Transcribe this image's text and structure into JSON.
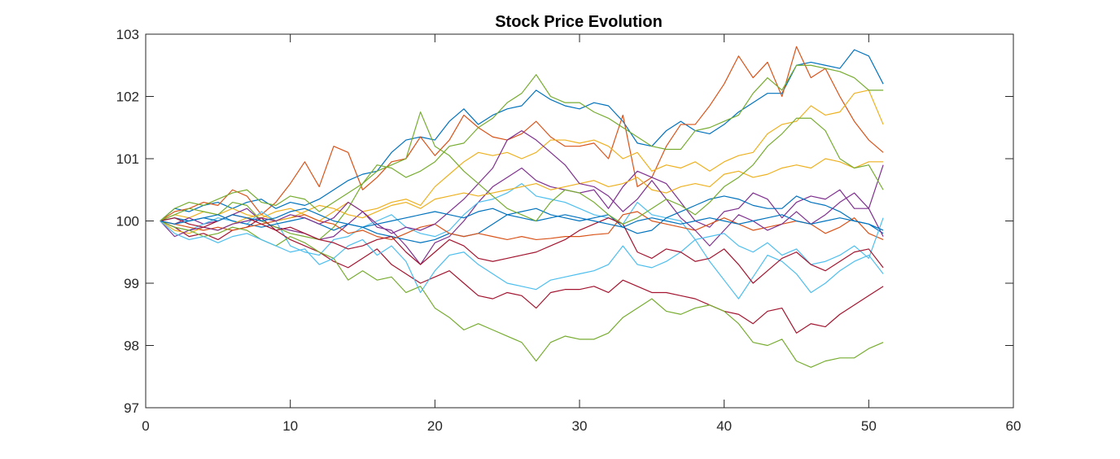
{
  "chart_data": {
    "type": "line",
    "title": "Stock Price Evolution",
    "xlabel": "",
    "ylabel": "",
    "xlim": [
      0,
      60
    ],
    "ylim": [
      97,
      103
    ],
    "xticks": [
      0,
      10,
      20,
      30,
      40,
      50,
      60
    ],
    "yticks": [
      97,
      98,
      99,
      100,
      101,
      102,
      103
    ],
    "xtick_labels": [
      "0",
      "10",
      "20",
      "30",
      "40",
      "50",
      "60"
    ],
    "ytick_labels": [
      "97",
      "98",
      "99",
      "100",
      "101",
      "102",
      "103"
    ],
    "grid": false,
    "box": true,
    "x": [
      1,
      2,
      3,
      4,
      5,
      6,
      7,
      8,
      9,
      10,
      11,
      12,
      13,
      14,
      15,
      16,
      17,
      18,
      19,
      20,
      21,
      22,
      23,
      24,
      25,
      26,
      27,
      28,
      29,
      30,
      31,
      32,
      33,
      34,
      35,
      36,
      37,
      38,
      39,
      40,
      41,
      42,
      43,
      44,
      45,
      46,
      47,
      48,
      49,
      50,
      51
    ],
    "series": [
      {
        "color": "#0072BD",
        "values": [
          100,
          100.2,
          100.15,
          100.25,
          100.3,
          100.2,
          100.3,
          100.35,
          100.2,
          100.3,
          100.25,
          100.35,
          100.5,
          100.65,
          100.75,
          100.8,
          101.1,
          101.3,
          101.35,
          101.3,
          101.6,
          101.8,
          101.55,
          101.7,
          101.8,
          101.85,
          102.1,
          101.95,
          101.85,
          101.8,
          101.9,
          101.85,
          101.6,
          101.25,
          101.2,
          101.45,
          101.6,
          101.45,
          101.4,
          101.55,
          101.75,
          101.9,
          102.05,
          102.05,
          102.5,
          102.55,
          102.5,
          102.45,
          102.75,
          102.65,
          102.2
        ]
      },
      {
        "color": "#D95319",
        "values": [
          100,
          100.15,
          100.2,
          100.3,
          100.25,
          100.5,
          100.4,
          100.1,
          100.3,
          100.6,
          100.95,
          100.55,
          101.2,
          101.1,
          100.5,
          100.7,
          100.95,
          101.0,
          101.35,
          101.05,
          101.3,
          101.7,
          101.5,
          101.35,
          101.3,
          101.4,
          101.6,
          101.35,
          101.2,
          101.2,
          101.25,
          101.0,
          101.7,
          100.55,
          100.7,
          101.2,
          101.55,
          101.55,
          101.85,
          102.2,
          102.65,
          102.3,
          102.55,
          102.0,
          102.8,
          102.3,
          102.45,
          102.0,
          101.6,
          101.3,
          101.1
        ]
      },
      {
        "color": "#EDB120",
        "values": [
          100,
          100.1,
          100.05,
          100.15,
          100.1,
          100.2,
          100.1,
          100.05,
          100.15,
          100.2,
          100.1,
          100.0,
          100.15,
          100.3,
          100.15,
          100.2,
          100.3,
          100.35,
          100.25,
          100.55,
          100.75,
          100.95,
          101.1,
          101.05,
          101.1,
          101.0,
          101.1,
          101.3,
          101.3,
          101.25,
          101.3,
          101.2,
          101.0,
          101.1,
          100.8,
          100.9,
          100.85,
          100.95,
          100.8,
          100.95,
          101.05,
          101.1,
          101.4,
          101.55,
          101.6,
          101.85,
          101.7,
          101.75,
          102.05,
          102.1,
          101.55
        ]
      },
      {
        "color": "#7E2F8E",
        "values": [
          100,
          99.95,
          100.05,
          99.95,
          100.0,
          100.1,
          100.2,
          100.0,
          99.9,
          99.85,
          99.8,
          99.7,
          99.75,
          99.95,
          100.15,
          99.9,
          99.85,
          99.6,
          99.3,
          99.65,
          99.75,
          100.0,
          100.3,
          100.55,
          100.7,
          100.85,
          100.65,
          100.55,
          100.5,
          100.45,
          100.5,
          100.2,
          100.55,
          100.8,
          100.7,
          100.6,
          100.3,
          100.0,
          99.9,
          100.15,
          100.2,
          100.45,
          100.35,
          100.05,
          100.3,
          100.4,
          100.35,
          100.5,
          100.2,
          100.2,
          100.9
        ]
      },
      {
        "color": "#77AC30",
        "values": [
          100,
          100.1,
          100.2,
          100.15,
          100.1,
          100.3,
          100.25,
          100.0,
          99.9,
          99.8,
          99.75,
          99.7,
          99.9,
          100.2,
          100.6,
          100.9,
          100.85,
          100.7,
          100.8,
          100.95,
          101.2,
          101.25,
          101.5,
          101.65,
          101.9,
          102.05,
          102.35,
          102.0,
          101.9,
          101.9,
          101.75,
          101.65,
          101.5,
          101.35,
          101.2,
          101.15,
          101.15,
          101.45,
          101.5,
          101.6,
          101.7,
          102.05,
          102.3,
          102.1,
          102.5,
          102.5,
          102.45,
          102.4,
          102.3,
          102.1,
          102.1
        ]
      },
      {
        "color": "#4DBEEE",
        "values": [
          100,
          99.9,
          99.85,
          99.95,
          100.05,
          100.0,
          99.95,
          100.15,
          100.0,
          99.6,
          99.5,
          99.45,
          99.7,
          99.75,
          99.9,
          100.0,
          100.1,
          99.9,
          99.8,
          99.75,
          99.85,
          100.1,
          100.3,
          100.35,
          100.45,
          100.6,
          100.4,
          100.35,
          100.3,
          100.2,
          100.1,
          100.05,
          99.95,
          100.3,
          100.1,
          100.05,
          100.0,
          99.7,
          99.35,
          99.05,
          98.75,
          99.1,
          99.45,
          99.35,
          99.15,
          98.85,
          99.0,
          99.2,
          99.35,
          99.45,
          99.15
        ]
      },
      {
        "color": "#A2142F",
        "values": [
          100,
          99.9,
          99.75,
          99.8,
          99.7,
          99.85,
          99.9,
          100.05,
          99.85,
          99.7,
          99.6,
          99.5,
          99.35,
          99.25,
          99.4,
          99.55,
          99.3,
          99.15,
          99.0,
          99.1,
          99.2,
          99.0,
          98.8,
          98.75,
          98.85,
          98.8,
          98.6,
          98.85,
          98.9,
          98.9,
          98.95,
          98.85,
          99.05,
          98.95,
          98.85,
          98.85,
          98.8,
          98.75,
          98.65,
          98.55,
          98.5,
          98.35,
          98.55,
          98.6,
          98.2,
          98.35,
          98.3,
          98.5,
          98.65,
          98.8,
          98.95
        ]
      },
      {
        "color": "#0072BD",
        "values": [
          100,
          100.05,
          100.0,
          100.05,
          100.1,
          100.0,
          99.95,
          99.9,
          99.95,
          100.0,
          100.05,
          99.95,
          99.85,
          99.95,
          99.9,
          99.8,
          99.75,
          99.7,
          99.65,
          99.7,
          99.8,
          99.75,
          99.8,
          99.95,
          100.1,
          100.15,
          100.2,
          100.1,
          100.05,
          100.0,
          100.05,
          100.1,
          99.9,
          99.8,
          99.85,
          100.05,
          100.15,
          100.25,
          100.35,
          100.4,
          100.35,
          100.25,
          100.2,
          100.2,
          100.4,
          100.3,
          100.25,
          100.15,
          100.0,
          99.95,
          99.8
        ]
      },
      {
        "color": "#D95319",
        "values": [
          100,
          99.95,
          99.9,
          99.85,
          99.9,
          99.85,
          99.9,
          99.95,
          100.0,
          100.05,
          100.1,
          100.0,
          99.95,
          99.8,
          99.85,
          99.75,
          99.7,
          99.8,
          99.9,
          99.95,
          99.8,
          99.75,
          99.8,
          99.75,
          99.7,
          99.75,
          99.7,
          99.72,
          99.75,
          99.75,
          99.78,
          99.8,
          100.1,
          100.15,
          100.0,
          99.95,
          99.9,
          99.85,
          99.95,
          100.05,
          99.95,
          99.85,
          99.9,
          99.95,
          100.0,
          99.95,
          99.8,
          99.9,
          100.05,
          99.8,
          99.7
        ]
      },
      {
        "color": "#EDB120",
        "values": [
          100,
          99.85,
          99.8,
          99.9,
          99.85,
          99.95,
          100.05,
          100.1,
          100.0,
          100.05,
          100.15,
          100.25,
          100.2,
          100.1,
          100.05,
          100.15,
          100.25,
          100.3,
          100.2,
          100.35,
          100.4,
          100.45,
          100.4,
          100.45,
          100.5,
          100.55,
          100.6,
          100.5,
          100.55,
          100.6,
          100.65,
          100.55,
          100.6,
          100.7,
          100.5,
          100.45,
          100.55,
          100.6,
          100.55,
          100.75,
          100.8,
          100.7,
          100.75,
          100.85,
          100.9,
          100.85,
          101.0,
          100.95,
          100.85,
          100.95,
          100.95
        ]
      },
      {
        "color": "#7E2F8E",
        "values": [
          100,
          99.75,
          99.85,
          99.9,
          99.85,
          99.95,
          100.0,
          100.05,
          100.0,
          100.1,
          100.05,
          99.95,
          100.05,
          100.3,
          100.15,
          99.95,
          99.8,
          99.9,
          99.85,
          99.95,
          100.15,
          100.35,
          100.6,
          100.85,
          101.3,
          101.45,
          101.3,
          101.1,
          100.9,
          100.6,
          100.55,
          100.4,
          100.15,
          100.35,
          100.65,
          100.35,
          100.05,
          99.85,
          99.6,
          99.85,
          100.1,
          100.0,
          99.85,
          99.95,
          100.15,
          99.95,
          100.1,
          100.3,
          100.45,
          100.2,
          99.75
        ]
      },
      {
        "color": "#77AC30",
        "values": [
          100,
          99.9,
          99.85,
          99.75,
          99.8,
          99.9,
          99.85,
          99.7,
          99.6,
          99.75,
          99.65,
          99.5,
          99.4,
          99.05,
          99.2,
          99.05,
          99.1,
          98.85,
          98.95,
          98.6,
          98.45,
          98.25,
          98.35,
          98.25,
          98.15,
          98.05,
          97.75,
          98.05,
          98.15,
          98.1,
          98.1,
          98.2,
          98.45,
          98.6,
          98.75,
          98.55,
          98.5,
          98.6,
          98.65,
          98.55,
          98.35,
          98.05,
          98.0,
          98.1,
          97.75,
          97.65,
          97.75,
          97.8,
          97.8,
          97.95,
          98.05
        ]
      },
      {
        "color": "#4DBEEE",
        "values": [
          100,
          99.8,
          99.7,
          99.75,
          99.65,
          99.75,
          99.8,
          99.7,
          99.6,
          99.5,
          99.55,
          99.3,
          99.4,
          99.6,
          99.7,
          99.45,
          99.6,
          99.35,
          98.85,
          99.2,
          99.45,
          99.5,
          99.3,
          99.15,
          99.0,
          98.95,
          98.9,
          99.05,
          99.1,
          99.15,
          99.2,
          99.3,
          99.6,
          99.3,
          99.25,
          99.35,
          99.5,
          99.7,
          99.75,
          99.8,
          99.6,
          99.5,
          99.65,
          99.45,
          99.55,
          99.3,
          99.35,
          99.45,
          99.6,
          99.4,
          100.05
        ]
      },
      {
        "color": "#A2142F",
        "values": [
          100,
          100.05,
          99.95,
          99.9,
          100.0,
          100.1,
          100.05,
          99.95,
          99.85,
          99.9,
          99.8,
          99.7,
          99.65,
          99.55,
          99.6,
          99.7,
          99.75,
          99.5,
          99.3,
          99.5,
          99.7,
          99.6,
          99.4,
          99.35,
          99.4,
          99.45,
          99.5,
          99.6,
          99.7,
          99.85,
          99.95,
          100.05,
          99.95,
          99.5,
          99.4,
          99.55,
          99.5,
          99.35,
          99.4,
          99.55,
          99.3,
          99.0,
          99.2,
          99.4,
          99.5,
          99.3,
          99.2,
          99.35,
          99.5,
          99.55,
          99.25
        ]
      },
      {
        "color": "#0072BD",
        "values": [
          100,
          99.95,
          100.0,
          100.05,
          100.0,
          100.1,
          100.05,
          100.0,
          100.05,
          100.15,
          100.2,
          100.1,
          100.0,
          99.95,
          99.9,
          99.95,
          100.0,
          100.05,
          100.1,
          100.15,
          100.1,
          100.05,
          100.15,
          100.2,
          100.1,
          100.05,
          100.0,
          100.05,
          100.1,
          100.05,
          100.0,
          99.95,
          99.9,
          100.0,
          100.05,
          100.0,
          99.95,
          100.0,
          100.05,
          100.0,
          99.95,
          100.0,
          100.05,
          100.1,
          100.0,
          99.95,
          100.0,
          100.05,
          100.0,
          99.95,
          99.85
        ]
      },
      {
        "color": "#77AC30",
        "values": [
          100,
          100.2,
          100.3,
          100.25,
          100.35,
          100.45,
          100.5,
          100.3,
          100.25,
          100.4,
          100.35,
          100.15,
          100.3,
          100.45,
          100.6,
          100.8,
          100.9,
          101.0,
          101.75,
          101.2,
          101.05,
          100.8,
          100.6,
          100.4,
          100.2,
          100.1,
          100.0,
          100.3,
          100.5,
          100.45,
          100.3,
          100.1,
          99.95,
          100.05,
          100.2,
          100.35,
          100.25,
          100.1,
          100.3,
          100.55,
          100.7,
          100.9,
          101.2,
          101.4,
          101.65,
          101.65,
          101.45,
          101.0,
          100.85,
          100.9,
          100.5
        ]
      }
    ]
  }
}
